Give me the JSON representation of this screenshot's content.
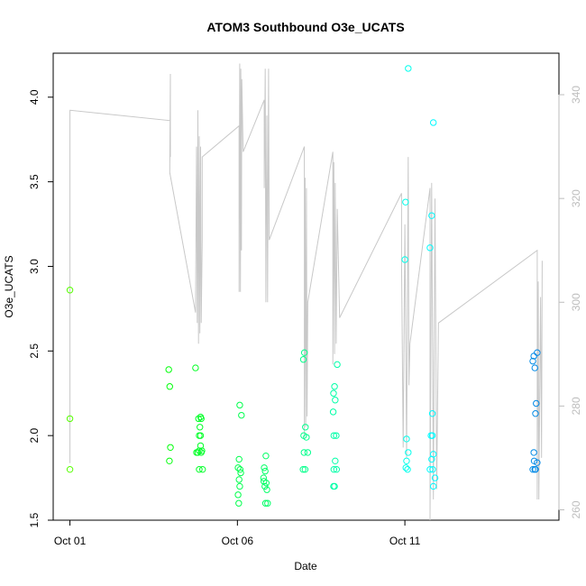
{
  "chart_data": {
    "type": "scatter",
    "title": "ATOM3 Southbound O3e_UCATS",
    "xlabel": "Date",
    "ylabel": "O3e_UCATS",
    "x_ticks": [
      {
        "day": 1,
        "label": "Oct 01"
      },
      {
        "day": 6,
        "label": "Oct 06"
      },
      {
        "day": 11,
        "label": "Oct 11"
      }
    ],
    "y_ticks": [
      "1.5",
      "2.0",
      "2.5",
      "3.0",
      "3.5",
      "4.0"
    ],
    "y2_ticks": [
      "260",
      "280",
      "300",
      "320",
      "340"
    ],
    "xlim": [
      0.5,
      15.6
    ],
    "ylim": [
      1.5,
      4.26
    ],
    "y2lim": [
      258,
      348
    ],
    "grid": false,
    "series": [
      {
        "type": "scatter",
        "points": [
          [
            1.0,
            2.86
          ],
          [
            1.0,
            2.1
          ],
          [
            1.0,
            1.8
          ],
          [
            3.95,
            2.39
          ],
          [
            3.98,
            2.29
          ],
          [
            4.0,
            1.93
          ],
          [
            3.97,
            1.85
          ],
          [
            4.75,
            2.4
          ],
          [
            4.78,
            1.9
          ],
          [
            4.82,
            1.9
          ],
          [
            4.86,
            1.91
          ],
          [
            4.84,
            2.1
          ],
          [
            4.9,
            2.11
          ],
          [
            4.92,
            2.1
          ],
          [
            4.88,
            2.05
          ],
          [
            4.86,
            2.0
          ],
          [
            4.9,
            2.0
          ],
          [
            4.9,
            1.94
          ],
          [
            4.92,
            1.9
          ],
          [
            4.94,
            1.91
          ],
          [
            4.86,
            1.8
          ],
          [
            4.96,
            1.8
          ],
          [
            6.07,
            2.18
          ],
          [
            6.12,
            2.12
          ],
          [
            6.05,
            1.86
          ],
          [
            6.02,
            1.81
          ],
          [
            6.08,
            1.8
          ],
          [
            6.1,
            1.78
          ],
          [
            6.05,
            1.74
          ],
          [
            6.07,
            1.7
          ],
          [
            6.02,
            1.65
          ],
          [
            6.04,
            1.6
          ],
          [
            6.85,
            1.88
          ],
          [
            6.8,
            1.81
          ],
          [
            6.83,
            1.79
          ],
          [
            6.78,
            1.75
          ],
          [
            6.86,
            1.72
          ],
          [
            6.82,
            1.7
          ],
          [
            6.88,
            1.68
          ],
          [
            6.84,
            1.6
          ],
          [
            6.9,
            1.6
          ],
          [
            6.79,
            1.73
          ],
          [
            8.0,
            2.49
          ],
          [
            7.97,
            2.45
          ],
          [
            8.03,
            2.05
          ],
          [
            7.98,
            2.0
          ],
          [
            8.06,
            1.99
          ],
          [
            8.1,
            1.9
          ],
          [
            7.99,
            1.9
          ],
          [
            7.96,
            1.8
          ],
          [
            8.02,
            1.8
          ],
          [
            8.98,
            2.42
          ],
          [
            8.9,
            2.29
          ],
          [
            8.87,
            2.25
          ],
          [
            8.92,
            2.21
          ],
          [
            8.86,
            2.14
          ],
          [
            8.88,
            2.0
          ],
          [
            8.95,
            2.0
          ],
          [
            8.92,
            1.85
          ],
          [
            8.96,
            1.8
          ],
          [
            8.88,
            1.8
          ],
          [
            8.9,
            1.7
          ],
          [
            8.87,
            1.7
          ],
          [
            11.1,
            4.17
          ],
          [
            11.02,
            3.38
          ],
          [
            11.0,
            3.04
          ],
          [
            11.05,
            1.98
          ],
          [
            11.1,
            1.9
          ],
          [
            11.05,
            1.85
          ],
          [
            11.03,
            1.81
          ],
          [
            11.08,
            1.8
          ],
          [
            11.85,
            3.85
          ],
          [
            11.8,
            3.3
          ],
          [
            11.75,
            3.11
          ],
          [
            11.82,
            2.13
          ],
          [
            11.78,
            2.0
          ],
          [
            11.82,
            2.0
          ],
          [
            11.85,
            1.89
          ],
          [
            11.8,
            1.86
          ],
          [
            11.75,
            1.8
          ],
          [
            11.83,
            1.8
          ],
          [
            11.9,
            1.75
          ],
          [
            11.85,
            1.7
          ],
          [
            14.95,
            2.49
          ],
          [
            14.85,
            2.47
          ],
          [
            14.82,
            2.44
          ],
          [
            14.88,
            2.4
          ],
          [
            14.92,
            2.19
          ],
          [
            14.9,
            2.13
          ],
          [
            14.85,
            1.9
          ],
          [
            14.86,
            1.85
          ],
          [
            14.95,
            1.84
          ],
          [
            14.82,
            1.8
          ],
          [
            14.9,
            1.8
          ],
          [
            14.88,
            1.8
          ]
        ]
      },
      {
        "type": "line",
        "axis": "right",
        "color": "#c8c8c8",
        "points": [
          [
            1.0,
            269
          ],
          [
            1.0,
            337
          ],
          [
            4.0,
            335
          ],
          [
            4.0,
            328
          ],
          [
            4.0,
            344
          ],
          [
            3.98,
            325
          ],
          [
            4.75,
            298
          ],
          [
            4.78,
            330
          ],
          [
            4.8,
            296
          ],
          [
            4.82,
            337
          ],
          [
            4.84,
            292
          ],
          [
            4.86,
            332
          ],
          [
            4.88,
            294
          ],
          [
            4.9,
            330
          ],
          [
            4.92,
            296
          ],
          [
            4.95,
            312
          ],
          [
            4.95,
            328
          ],
          [
            6.05,
            334
          ],
          [
            6.05,
            302
          ],
          [
            6.07,
            346
          ],
          [
            6.09,
            302
          ],
          [
            6.1,
            345
          ],
          [
            6.12,
            310
          ],
          [
            6.13,
            343
          ],
          [
            6.17,
            329
          ],
          [
            6.8,
            339
          ],
          [
            6.8,
            322
          ],
          [
            6.83,
            345
          ],
          [
            6.85,
            300
          ],
          [
            6.88,
            336
          ],
          [
            6.9,
            300
          ],
          [
            6.93,
            345
          ],
          [
            6.95,
            312
          ],
          [
            6.95,
            312
          ],
          [
            8.0,
            330
          ],
          [
            8.0,
            274
          ],
          [
            8.02,
            324
          ],
          [
            8.04,
            276
          ],
          [
            8.06,
            322
          ],
          [
            8.08,
            278
          ],
          [
            8.1,
            300
          ],
          [
            8.1,
            300
          ],
          [
            8.85,
            329
          ],
          [
            8.85,
            288
          ],
          [
            8.88,
            327
          ],
          [
            8.9,
            290
          ],
          [
            8.92,
            323
          ],
          [
            8.95,
            292
          ],
          [
            8.98,
            318
          ],
          [
            9.05,
            297
          ],
          [
            10.9,
            321
          ],
          [
            10.9,
            308
          ],
          [
            10.95,
            272
          ],
          [
            11.0,
            315
          ],
          [
            11.05,
            270
          ],
          [
            11.1,
            328
          ],
          [
            11.12,
            284
          ],
          [
            11.15,
            292
          ],
          [
            11.75,
            322
          ],
          [
            11.75,
            258
          ],
          [
            11.8,
            323
          ],
          [
            11.85,
            262
          ],
          [
            11.9,
            320
          ],
          [
            11.95,
            264
          ],
          [
            12.0,
            296
          ],
          [
            12.0,
            296
          ],
          [
            14.95,
            310
          ],
          [
            14.95,
            262
          ],
          [
            14.98,
            304
          ],
          [
            15.0,
            262
          ],
          [
            15.05,
            301
          ],
          [
            15.08,
            270
          ],
          [
            15.1,
            308
          ]
        ]
      }
    ]
  }
}
